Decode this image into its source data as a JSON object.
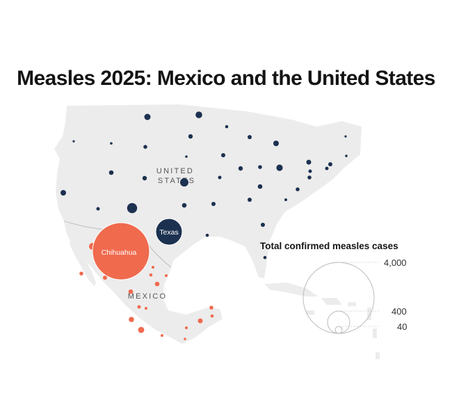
{
  "title": "Measles 2025: Mexico and the United States",
  "labels": {
    "us_line1": "UNITED",
    "us_line2": "STATES",
    "mexico": "MEXICO",
    "texas": "Texas",
    "chihuahua": "Chihuahua"
  },
  "legend": {
    "title": "Total confirmed measles cases",
    "values": [
      "4,000",
      "400",
      "40"
    ]
  },
  "colors": {
    "land": "#ececec",
    "us_bubble": "#1c3150",
    "mexico_bubble": "#f06a4e",
    "border": "#b8b8b8",
    "legend_circle": "#b5b5b5"
  }
}
